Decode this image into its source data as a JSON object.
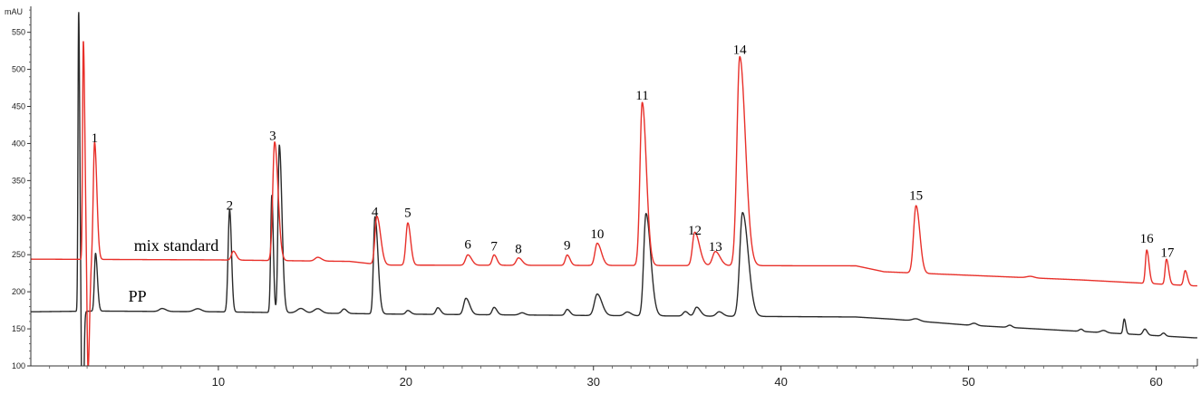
{
  "chart_data": {
    "type": "line",
    "title": "",
    "y_unit": "mAU",
    "xlim": [
      0,
      62.2
    ],
    "ylim": [
      100,
      585
    ],
    "x_ticks": [
      10,
      20,
      30,
      40,
      50,
      60
    ],
    "y_ticks": [
      100,
      150,
      200,
      250,
      300,
      350,
      400,
      450,
      500,
      550
    ],
    "grid": false,
    "series": [
      {
        "name": "mix standard",
        "color": "#e8302a",
        "baseline": [
          [
            0,
            244
          ],
          [
            10,
            243
          ],
          [
            17,
            241
          ],
          [
            18.8,
            236
          ],
          [
            44,
            235
          ],
          [
            45.5,
            227
          ],
          [
            56,
            216
          ],
          [
            62,
            208
          ]
        ],
        "peaks": [
          [
            2.8,
            295,
            0.04,
            0.08
          ],
          [
            3.05,
            -150,
            0.05,
            0.08
          ],
          [
            3.4,
            158,
            0.07,
            0.12
          ],
          [
            10.8,
            12,
            0.1,
            0.15
          ],
          [
            13.0,
            160,
            0.1,
            0.18
          ],
          [
            15.3,
            5,
            0.15,
            0.2
          ],
          [
            18.45,
            65,
            0.1,
            0.2
          ],
          [
            20.1,
            57,
            0.1,
            0.15
          ],
          [
            23.3,
            14,
            0.12,
            0.2
          ],
          [
            24.7,
            14,
            0.1,
            0.15
          ],
          [
            26.0,
            10,
            0.12,
            0.2
          ],
          [
            28.6,
            14,
            0.1,
            0.15
          ],
          [
            30.2,
            30,
            0.12,
            0.22
          ],
          [
            32.6,
            220,
            0.12,
            0.22
          ],
          [
            35.4,
            45,
            0.12,
            0.25
          ],
          [
            36.5,
            19,
            0.15,
            0.25
          ],
          [
            37.8,
            282,
            0.15,
            0.3
          ],
          [
            47.2,
            91,
            0.13,
            0.2
          ],
          [
            53.3,
            2,
            0.2,
            0.2
          ],
          [
            59.5,
            45,
            0.07,
            0.12
          ],
          [
            60.55,
            34,
            0.07,
            0.12
          ],
          [
            61.55,
            20,
            0.08,
            0.12
          ]
        ]
      },
      {
        "name": "PP",
        "color": "#2b2b2b",
        "baseline": [
          [
            0,
            173
          ],
          [
            3.5,
            174
          ],
          [
            10,
            173
          ],
          [
            19,
            170
          ],
          [
            30,
            168
          ],
          [
            44,
            166
          ],
          [
            46,
            163
          ],
          [
            50,
            155
          ],
          [
            55,
            148
          ],
          [
            62,
            138
          ]
        ],
        "peaks": [
          [
            2.55,
            405,
            0.035,
            0.06
          ],
          [
            2.75,
            -260,
            0.04,
            0.06
          ],
          [
            3.45,
            78,
            0.06,
            0.1
          ],
          [
            7.0,
            4,
            0.15,
            0.2
          ],
          [
            8.9,
            4,
            0.2,
            0.2
          ],
          [
            10.6,
            138,
            0.08,
            0.1
          ],
          [
            12.85,
            158,
            0.06,
            0.08
          ],
          [
            13.25,
            226,
            0.07,
            0.14
          ],
          [
            14.4,
            6,
            0.2,
            0.2
          ],
          [
            15.3,
            6,
            0.2,
            0.2
          ],
          [
            16.7,
            6,
            0.12,
            0.15
          ],
          [
            18.35,
            131,
            0.08,
            0.16
          ],
          [
            20.1,
            5,
            0.1,
            0.15
          ],
          [
            21.7,
            9,
            0.1,
            0.15
          ],
          [
            23.2,
            22,
            0.12,
            0.2
          ],
          [
            24.7,
            10,
            0.1,
            0.15
          ],
          [
            26.2,
            3,
            0.15,
            0.15
          ],
          [
            28.6,
            8,
            0.1,
            0.15
          ],
          [
            30.2,
            29,
            0.15,
            0.25
          ],
          [
            31.8,
            5,
            0.15,
            0.2
          ],
          [
            32.8,
            138,
            0.12,
            0.25
          ],
          [
            34.9,
            6,
            0.12,
            0.15
          ],
          [
            35.5,
            12,
            0.12,
            0.2
          ],
          [
            36.7,
            6,
            0.15,
            0.2
          ],
          [
            37.95,
            140,
            0.15,
            0.3
          ],
          [
            47.2,
            3,
            0.2,
            0.2
          ],
          [
            50.3,
            3,
            0.15,
            0.15
          ],
          [
            52.2,
            3,
            0.12,
            0.12
          ],
          [
            56.0,
            3,
            0.1,
            0.1
          ],
          [
            57.2,
            3,
            0.15,
            0.15
          ],
          [
            58.3,
            20,
            0.06,
            0.08
          ],
          [
            59.4,
            8,
            0.1,
            0.12
          ],
          [
            60.4,
            4,
            0.1,
            0.1
          ]
        ]
      }
    ],
    "series_labels": [
      {
        "text": "mix standard",
        "x": 5.5,
        "y": 255
      },
      {
        "text": "PP",
        "x": 5.2,
        "y": 187
      }
    ],
    "peak_labels": [
      {
        "text": "1",
        "x": 3.4,
        "y": 402
      },
      {
        "text": "2",
        "x": 10.6,
        "y": 311
      },
      {
        "text": "3",
        "x": 12.9,
        "y": 405
      },
      {
        "text": "4",
        "x": 18.35,
        "y": 302
      },
      {
        "text": "5",
        "x": 20.1,
        "y": 301
      },
      {
        "text": "6",
        "x": 23.3,
        "y": 258
      },
      {
        "text": "7",
        "x": 24.7,
        "y": 256
      },
      {
        "text": "8",
        "x": 26.0,
        "y": 252
      },
      {
        "text": "9",
        "x": 28.6,
        "y": 257
      },
      {
        "text": "10",
        "x": 30.2,
        "y": 272
      },
      {
        "text": "11",
        "x": 32.6,
        "y": 459
      },
      {
        "text": "12",
        "x": 35.4,
        "y": 277
      },
      {
        "text": "13",
        "x": 36.5,
        "y": 255
      },
      {
        "text": "14",
        "x": 37.8,
        "y": 521
      },
      {
        "text": "15",
        "x": 47.2,
        "y": 324
      },
      {
        "text": "16",
        "x": 59.5,
        "y": 266
      },
      {
        "text": "17",
        "x": 60.6,
        "y": 247
      }
    ]
  }
}
